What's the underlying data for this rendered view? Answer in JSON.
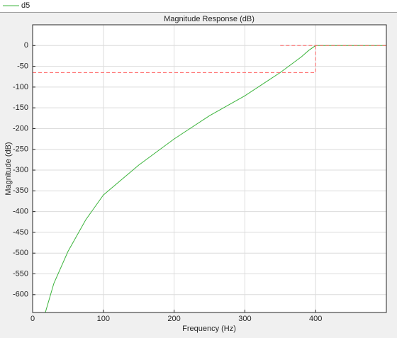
{
  "chart_data": {
    "type": "line",
    "title": "Magnitude Response (dB)",
    "xlabel": "Frequency (Hz)",
    "ylabel": "Magnitude (dB)",
    "xlim": [
      0,
      500
    ],
    "ylim": [
      -643,
      50
    ],
    "xticks": [
      0,
      100,
      200,
      300,
      400
    ],
    "yticks": [
      0,
      -50,
      -100,
      -150,
      -200,
      -250,
      -300,
      -350,
      -400,
      -450,
      -500,
      -550,
      -600
    ],
    "grid": true,
    "series": [
      {
        "name": "d5",
        "color": "#3cb43c",
        "x": [
          18,
          30,
          50,
          75,
          100,
          150,
          200,
          250,
          300,
          350,
          380,
          390,
          400,
          450,
          500
        ],
        "values": [
          -643,
          -573,
          -496,
          -420,
          -360,
          -288,
          -225,
          -169,
          -121,
          -65,
          -27,
          -12,
          0,
          0,
          0
        ]
      }
    ],
    "mask": {
      "color": "#ff6464",
      "x": [
        0,
        400,
        400,
        350,
        350,
        500
      ],
      "values": [
        -65,
        -65,
        0,
        null,
        0,
        0
      ]
    }
  }
}
